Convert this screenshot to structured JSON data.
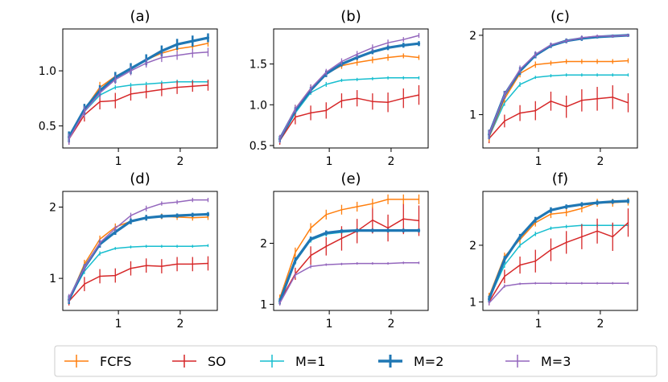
{
  "figure": {
    "type": "multi-panel line chart with error bars"
  },
  "legend": {
    "entries": [
      {
        "key": "FCFS",
        "label": "FCFS",
        "color": "#ff7f0e"
      },
      {
        "key": "SO",
        "label": "SO",
        "color": "#d62728"
      },
      {
        "key": "M1",
        "label": "M=1",
        "color": "#17becf"
      },
      {
        "key": "M2",
        "label": "M=2",
        "color": "#1f77b4"
      },
      {
        "key": "M3",
        "label": "M=3",
        "color": "#9467bd"
      }
    ]
  },
  "chart_data": [
    {
      "type": "line",
      "title": "(a)",
      "x": [
        0.2,
        0.45,
        0.7,
        0.95,
        1.2,
        1.45,
        1.7,
        1.95,
        2.2,
        2.45
      ],
      "xlim": [
        0.1,
        2.6
      ],
      "ylim": [
        0.3,
        1.38
      ],
      "xticks": [
        1,
        2
      ],
      "xticklabels": [
        "1",
        "2"
      ],
      "yticks": [
        0.5,
        1.0
      ],
      "yticklabels": [
        "0.5",
        "1.0"
      ],
      "series": [
        {
          "name": "FCFS",
          "values": [
            0.4,
            0.65,
            0.85,
            0.95,
            1.02,
            1.1,
            1.16,
            1.2,
            1.22,
            1.25
          ],
          "err": [
            0.05,
            0.05,
            0.05,
            0.04,
            0.04,
            0.04,
            0.03,
            0.03,
            0.03,
            0.03
          ]
        },
        {
          "name": "SO",
          "values": [
            0.38,
            0.6,
            0.72,
            0.73,
            0.79,
            0.81,
            0.83,
            0.85,
            0.86,
            0.87
          ],
          "err": [
            0.05,
            0.06,
            0.07,
            0.07,
            0.06,
            0.06,
            0.06,
            0.06,
            0.05,
            0.05
          ]
        },
        {
          "name": "M=1",
          "values": [
            0.4,
            0.63,
            0.78,
            0.85,
            0.87,
            0.88,
            0.89,
            0.9,
            0.9,
            0.9
          ],
          "err": [
            0.03,
            0.03,
            0.02,
            0.02,
            0.02,
            0.02,
            0.02,
            0.02,
            0.02,
            0.02
          ]
        },
        {
          "name": "M=2",
          "values": [
            0.4,
            0.65,
            0.82,
            0.94,
            1.02,
            1.1,
            1.18,
            1.24,
            1.27,
            1.3
          ],
          "err": [
            0.05,
            0.05,
            0.05,
            0.05,
            0.05,
            0.05,
            0.05,
            0.05,
            0.05,
            0.04
          ]
        },
        {
          "name": "M=3",
          "values": [
            0.38,
            0.63,
            0.8,
            0.92,
            1.0,
            1.07,
            1.12,
            1.14,
            1.16,
            1.17
          ],
          "err": [
            0.05,
            0.05,
            0.05,
            0.04,
            0.04,
            0.04,
            0.04,
            0.04,
            0.04,
            0.04
          ]
        }
      ]
    },
    {
      "type": "line",
      "title": "(b)",
      "x": [
        0.2,
        0.45,
        0.7,
        0.95,
        1.2,
        1.45,
        1.7,
        1.95,
        2.2,
        2.45
      ],
      "xlim": [
        0.1,
        2.6
      ],
      "ylim": [
        0.47,
        1.93
      ],
      "xticks": [
        1,
        2
      ],
      "xticklabels": [
        "1",
        "2"
      ],
      "yticks": [
        0.5,
        1.0,
        1.5
      ],
      "yticklabels": [
        "0.5",
        "1.0",
        "1.5"
      ],
      "series": [
        {
          "name": "FCFS",
          "values": [
            0.58,
            0.95,
            1.2,
            1.38,
            1.48,
            1.52,
            1.55,
            1.58,
            1.6,
            1.58
          ],
          "err": [
            0.05,
            0.05,
            0.05,
            0.04,
            0.04,
            0.04,
            0.04,
            0.04,
            0.03,
            0.03
          ]
        },
        {
          "name": "SO",
          "values": [
            0.56,
            0.85,
            0.9,
            0.93,
            1.05,
            1.08,
            1.04,
            1.03,
            1.08,
            1.12
          ],
          "err": [
            0.05,
            0.09,
            0.09,
            0.1,
            0.09,
            0.1,
            0.1,
            0.12,
            0.12,
            0.12
          ]
        },
        {
          "name": "M=1",
          "values": [
            0.56,
            0.9,
            1.15,
            1.25,
            1.3,
            1.31,
            1.32,
            1.33,
            1.33,
            1.33
          ],
          "err": [
            0.04,
            0.04,
            0.03,
            0.03,
            0.02,
            0.02,
            0.02,
            0.02,
            0.02,
            0.02
          ]
        },
        {
          "name": "M=2",
          "values": [
            0.58,
            0.93,
            1.18,
            1.38,
            1.5,
            1.58,
            1.65,
            1.7,
            1.73,
            1.75
          ],
          "err": [
            0.04,
            0.04,
            0.04,
            0.04,
            0.03,
            0.03,
            0.03,
            0.03,
            0.03,
            0.03
          ]
        },
        {
          "name": "M=3",
          "values": [
            0.58,
            0.95,
            1.2,
            1.4,
            1.53,
            1.62,
            1.7,
            1.76,
            1.8,
            1.85
          ],
          "err": [
            0.05,
            0.05,
            0.05,
            0.04,
            0.04,
            0.04,
            0.04,
            0.04,
            0.03,
            0.03
          ]
        }
      ]
    },
    {
      "type": "line",
      "title": "(c)",
      "x": [
        0.2,
        0.45,
        0.7,
        0.95,
        1.2,
        1.45,
        1.7,
        1.95,
        2.2,
        2.45
      ],
      "xlim": [
        0.1,
        2.6
      ],
      "ylim": [
        0.58,
        2.08
      ],
      "xticks": [
        1,
        2
      ],
      "xticklabels": [
        "1",
        "2"
      ],
      "yticks": [
        1,
        2
      ],
      "yticklabels": [
        "1",
        "2"
      ],
      "series": [
        {
          "name": "FCFS",
          "values": [
            0.72,
            1.2,
            1.52,
            1.63,
            1.65,
            1.67,
            1.67,
            1.67,
            1.67,
            1.68
          ],
          "err": [
            0.06,
            0.05,
            0.05,
            0.04,
            0.03,
            0.03,
            0.03,
            0.03,
            0.03,
            0.03
          ]
        },
        {
          "name": "SO",
          "values": [
            0.7,
            0.92,
            1.02,
            1.05,
            1.17,
            1.1,
            1.18,
            1.2,
            1.22,
            1.15
          ],
          "err": [
            0.06,
            0.08,
            0.1,
            0.12,
            0.12,
            0.14,
            0.14,
            0.15,
            0.15,
            0.12
          ]
        },
        {
          "name": "M=1",
          "values": [
            0.72,
            1.15,
            1.38,
            1.47,
            1.49,
            1.5,
            1.5,
            1.5,
            1.5,
            1.5
          ],
          "err": [
            0.04,
            0.04,
            0.03,
            0.02,
            0.02,
            0.02,
            0.02,
            0.02,
            0.02,
            0.02
          ]
        },
        {
          "name": "M=2",
          "values": [
            0.75,
            1.25,
            1.55,
            1.75,
            1.87,
            1.93,
            1.96,
            1.98,
            1.99,
            2.0
          ],
          "err": [
            0.06,
            0.05,
            0.05,
            0.04,
            0.03,
            0.03,
            0.03,
            0.02,
            0.02,
            0.02
          ]
        },
        {
          "name": "M=3",
          "values": [
            0.75,
            1.25,
            1.57,
            1.76,
            1.88,
            1.93,
            1.97,
            1.99,
            1.99,
            2.0
          ],
          "err": [
            0.06,
            0.05,
            0.05,
            0.04,
            0.03,
            0.03,
            0.03,
            0.02,
            0.02,
            0.02
          ]
        }
      ]
    },
    {
      "type": "line",
      "title": "(d)",
      "x": [
        0.2,
        0.45,
        0.7,
        0.95,
        1.2,
        1.45,
        1.7,
        1.95,
        2.2,
        2.45
      ],
      "xlim": [
        0.1,
        2.6
      ],
      "ylim": [
        0.55,
        2.22
      ],
      "xticks": [
        1,
        2
      ],
      "xticklabels": [
        "1",
        "2"
      ],
      "yticks": [
        1,
        2
      ],
      "yticklabels": [
        "1",
        "2"
      ],
      "series": [
        {
          "name": "FCFS",
          "values": [
            0.7,
            1.2,
            1.55,
            1.72,
            1.8,
            1.85,
            1.87,
            1.86,
            1.85,
            1.86
          ],
          "err": [
            0.06,
            0.06,
            0.05,
            0.05,
            0.04,
            0.04,
            0.04,
            0.04,
            0.04,
            0.04
          ]
        },
        {
          "name": "SO",
          "values": [
            0.68,
            0.92,
            1.03,
            1.04,
            1.14,
            1.18,
            1.17,
            1.2,
            1.2,
            1.21
          ],
          "err": [
            0.06,
            0.1,
            0.1,
            0.1,
            0.1,
            0.1,
            0.1,
            0.1,
            0.1,
            0.1
          ]
        },
        {
          "name": "M=1",
          "values": [
            0.7,
            1.1,
            1.35,
            1.42,
            1.44,
            1.45,
            1.45,
            1.45,
            1.45,
            1.46
          ],
          "err": [
            0.04,
            0.04,
            0.03,
            0.02,
            0.02,
            0.02,
            0.02,
            0.02,
            0.02,
            0.02
          ]
        },
        {
          "name": "M=2",
          "values": [
            0.7,
            1.15,
            1.48,
            1.65,
            1.8,
            1.85,
            1.87,
            1.88,
            1.89,
            1.9
          ],
          "err": [
            0.06,
            0.05,
            0.05,
            0.04,
            0.04,
            0.04,
            0.03,
            0.03,
            0.03,
            0.03
          ]
        },
        {
          "name": "M=3",
          "values": [
            0.72,
            1.15,
            1.5,
            1.7,
            1.88,
            1.98,
            2.05,
            2.07,
            2.1,
            2.1
          ],
          "err": [
            0.06,
            0.05,
            0.05,
            0.04,
            0.04,
            0.04,
            0.03,
            0.03,
            0.03,
            0.03
          ]
        }
      ]
    },
    {
      "type": "line",
      "title": "(e)",
      "x": [
        0.2,
        0.45,
        0.7,
        0.95,
        1.2,
        1.45,
        1.7,
        1.95,
        2.2,
        2.45
      ],
      "xlim": [
        0.1,
        2.6
      ],
      "ylim": [
        0.9,
        2.85
      ],
      "xticks": [
        1,
        2
      ],
      "xticklabels": [
        "1",
        "2"
      ],
      "yticks": [
        1,
        2
      ],
      "yticklabels": [
        "1",
        "2"
      ],
      "series": [
        {
          "name": "FCFS",
          "values": [
            1.1,
            1.85,
            2.25,
            2.47,
            2.55,
            2.6,
            2.65,
            2.72,
            2.72,
            2.72
          ],
          "err": [
            0.06,
            0.08,
            0.08,
            0.08,
            0.08,
            0.08,
            0.08,
            0.08,
            0.08,
            0.08
          ]
        },
        {
          "name": "SO",
          "values": [
            1.05,
            1.5,
            1.8,
            1.95,
            2.08,
            2.2,
            2.38,
            2.25,
            2.4,
            2.37
          ],
          "err": [
            0.06,
            0.1,
            0.15,
            0.15,
            0.2,
            0.2,
            0.22,
            0.22,
            0.25,
            0.25
          ]
        },
        {
          "name": "M=1",
          "values": [
            1.05,
            1.7,
            2.05,
            2.15,
            2.18,
            2.2,
            2.2,
            2.2,
            2.2,
            2.2
          ],
          "err": [
            0.05,
            0.05,
            0.04,
            0.04,
            0.03,
            0.03,
            0.03,
            0.03,
            0.03,
            0.03
          ]
        },
        {
          "name": "M=2",
          "values": [
            1.05,
            1.72,
            2.07,
            2.17,
            2.2,
            2.21,
            2.21,
            2.21,
            2.21,
            2.21
          ],
          "err": [
            0.05,
            0.05,
            0.04,
            0.04,
            0.03,
            0.03,
            0.03,
            0.03,
            0.03,
            0.03
          ]
        },
        {
          "name": "M=3",
          "values": [
            1.02,
            1.48,
            1.62,
            1.65,
            1.66,
            1.67,
            1.67,
            1.67,
            1.68,
            1.68
          ],
          "err": [
            0.04,
            0.04,
            0.03,
            0.02,
            0.02,
            0.02,
            0.02,
            0.02,
            0.02,
            0.02
          ]
        }
      ]
    },
    {
      "type": "line",
      "title": "(f)",
      "x": [
        0.2,
        0.45,
        0.7,
        0.95,
        1.2,
        1.45,
        1.7,
        1.95,
        2.2,
        2.45
      ],
      "xlim": [
        0.1,
        2.6
      ],
      "ylim": [
        0.85,
        2.95
      ],
      "xticks": [
        1,
        2
      ],
      "xticklabels": [
        "1",
        "2"
      ],
      "yticks": [
        1,
        2
      ],
      "yticklabels": [
        "1",
        "2"
      ],
      "series": [
        {
          "name": "FCFS",
          "values": [
            1.1,
            1.8,
            2.1,
            2.4,
            2.55,
            2.58,
            2.65,
            2.75,
            2.75,
            2.77
          ],
          "err": [
            0.06,
            0.07,
            0.07,
            0.07,
            0.07,
            0.07,
            0.07,
            0.07,
            0.07,
            0.07
          ]
        },
        {
          "name": "SO",
          "values": [
            1.0,
            1.45,
            1.65,
            1.72,
            1.92,
            2.05,
            2.15,
            2.25,
            2.15,
            2.4
          ],
          "err": [
            0.06,
            0.12,
            0.15,
            0.2,
            0.2,
            0.2,
            0.22,
            0.22,
            0.25,
            0.25
          ]
        },
        {
          "name": "M=1",
          "values": [
            1.05,
            1.65,
            2.0,
            2.2,
            2.3,
            2.33,
            2.35,
            2.35,
            2.35,
            2.35
          ],
          "err": [
            0.05,
            0.05,
            0.04,
            0.04,
            0.03,
            0.03,
            0.03,
            0.03,
            0.03,
            0.03
          ]
        },
        {
          "name": "M=2",
          "values": [
            1.05,
            1.75,
            2.15,
            2.45,
            2.62,
            2.68,
            2.72,
            2.75,
            2.77,
            2.78
          ],
          "err": [
            0.06,
            0.06,
            0.05,
            0.05,
            0.05,
            0.04,
            0.04,
            0.04,
            0.04,
            0.04
          ]
        },
        {
          "name": "M=3",
          "values": [
            0.98,
            1.28,
            1.32,
            1.33,
            1.33,
            1.33,
            1.33,
            1.33,
            1.33,
            1.33
          ],
          "err": [
            0.04,
            0.03,
            0.02,
            0.02,
            0.02,
            0.02,
            0.02,
            0.02,
            0.02,
            0.02
          ]
        }
      ]
    }
  ]
}
